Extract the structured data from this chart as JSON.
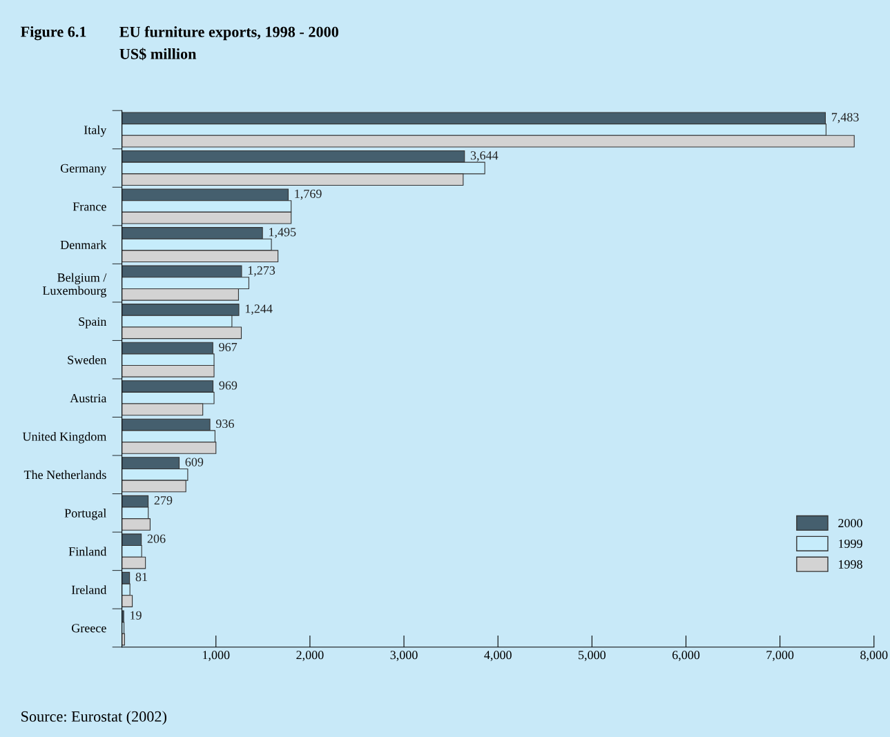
{
  "chart_data": {
    "type": "bar",
    "orientation": "horizontal",
    "title": "EU furniture exports, 1998 - 2000",
    "subtitle": "US$ million",
    "annotations": [
      "Figure 6.1",
      "Source: Eurostat (2002)"
    ],
    "categories": [
      "Italy",
      "Germany",
      "France",
      "Denmark",
      "Belgium /\nLuxembourg",
      "Spain",
      "Sweden",
      "Austria",
      "United Kingdom",
      "The Netherlands",
      "Portugal",
      "Finland",
      "Ireland",
      "Greece"
    ],
    "series": [
      {
        "name": "2000",
        "color": "#455f6e",
        "values": [
          7483,
          3644,
          1769,
          1495,
          1273,
          1244,
          967,
          969,
          936,
          609,
          279,
          206,
          81,
          19
        ],
        "value_labels": [
          "7,483",
          "3,644",
          "1,769",
          "1,495",
          "1,273",
          "1,244",
          "967",
          "969",
          "936",
          "609",
          "279",
          "206",
          "81",
          "19"
        ]
      },
      {
        "name": "1999",
        "color": "#c6ecfb",
        "values": [
          7490,
          3860,
          1800,
          1590,
          1350,
          1170,
          980,
          980,
          990,
          700,
          280,
          210,
          85,
          22
        ]
      },
      {
        "name": "1998",
        "color": "#d3d3d3",
        "values": [
          7790,
          3630,
          1800,
          1660,
          1240,
          1270,
          980,
          860,
          1000,
          680,
          300,
          250,
          110,
          28
        ]
      }
    ],
    "xlim": [
      0,
      8000
    ],
    "xticks": [
      {
        "value": 1000,
        "label": "1,000"
      },
      {
        "value": 2000,
        "label": "2,000"
      },
      {
        "value": 3000,
        "label": "3,000"
      },
      {
        "value": 4000,
        "label": "4,000"
      },
      {
        "value": 5000,
        "label": "5,000"
      },
      {
        "value": 6000,
        "label": "6,000"
      },
      {
        "value": 7000,
        "label": "7,000"
      },
      {
        "value": 8000,
        "label": "8,000"
      }
    ],
    "grid": false,
    "legend": "bottom right"
  }
}
